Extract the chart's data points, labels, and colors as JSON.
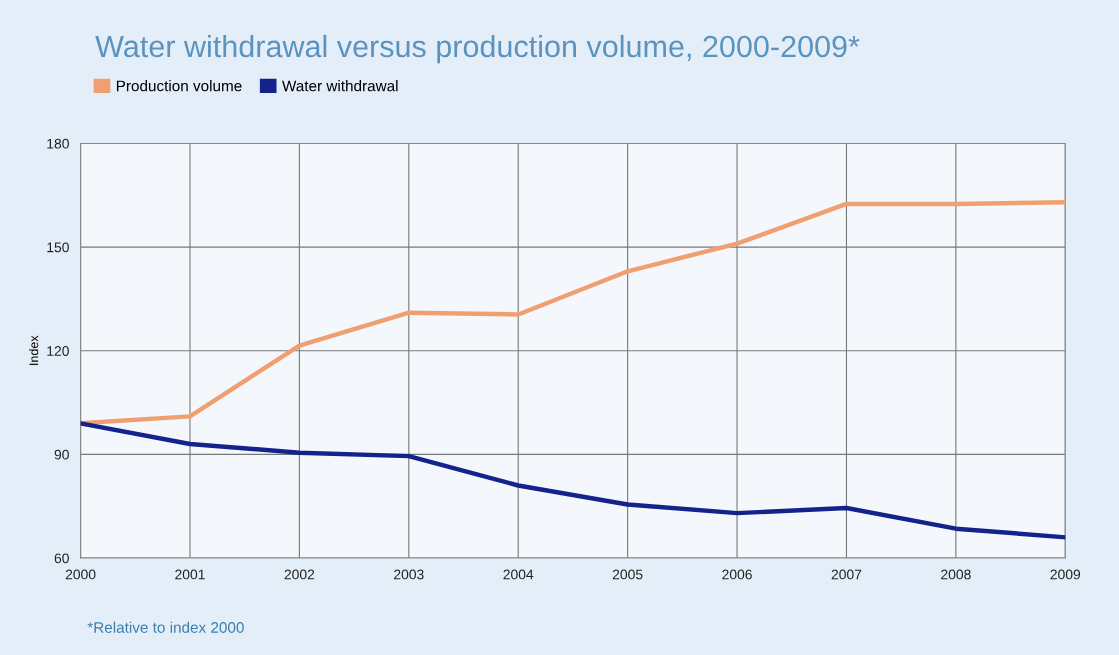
{
  "chart_data": {
    "type": "line",
    "title": "Water withdrawal versus production volume, 2000-2009*",
    "ylabel": "Index",
    "x": [
      2000,
      2001,
      2002,
      2003,
      2004,
      2005,
      2006,
      2007,
      2008,
      2009
    ],
    "series": [
      {
        "name": "Production volume",
        "color": "#f0a070",
        "values": [
          99,
          101,
          121.5,
          131,
          130.5,
          143,
          151,
          162.5,
          162.5,
          163
        ]
      },
      {
        "name": "Water withdrawal",
        "color": "#14228c",
        "values": [
          99,
          93,
          90.5,
          89.5,
          81,
          75.5,
          73,
          74.5,
          68.5,
          66
        ]
      }
    ],
    "xlim": [
      2000,
      2009
    ],
    "xticks": [
      2000,
      2001,
      2002,
      2003,
      2004,
      2005,
      2006,
      2007,
      2008,
      2009
    ],
    "ylim": [
      60,
      180
    ],
    "yticks": [
      60,
      90,
      120,
      150,
      180
    ],
    "grid": true,
    "legend": "top left",
    "marker": "none",
    "line_style": "solid",
    "annotations": [
      "*Relative to index 2000"
    ]
  }
}
